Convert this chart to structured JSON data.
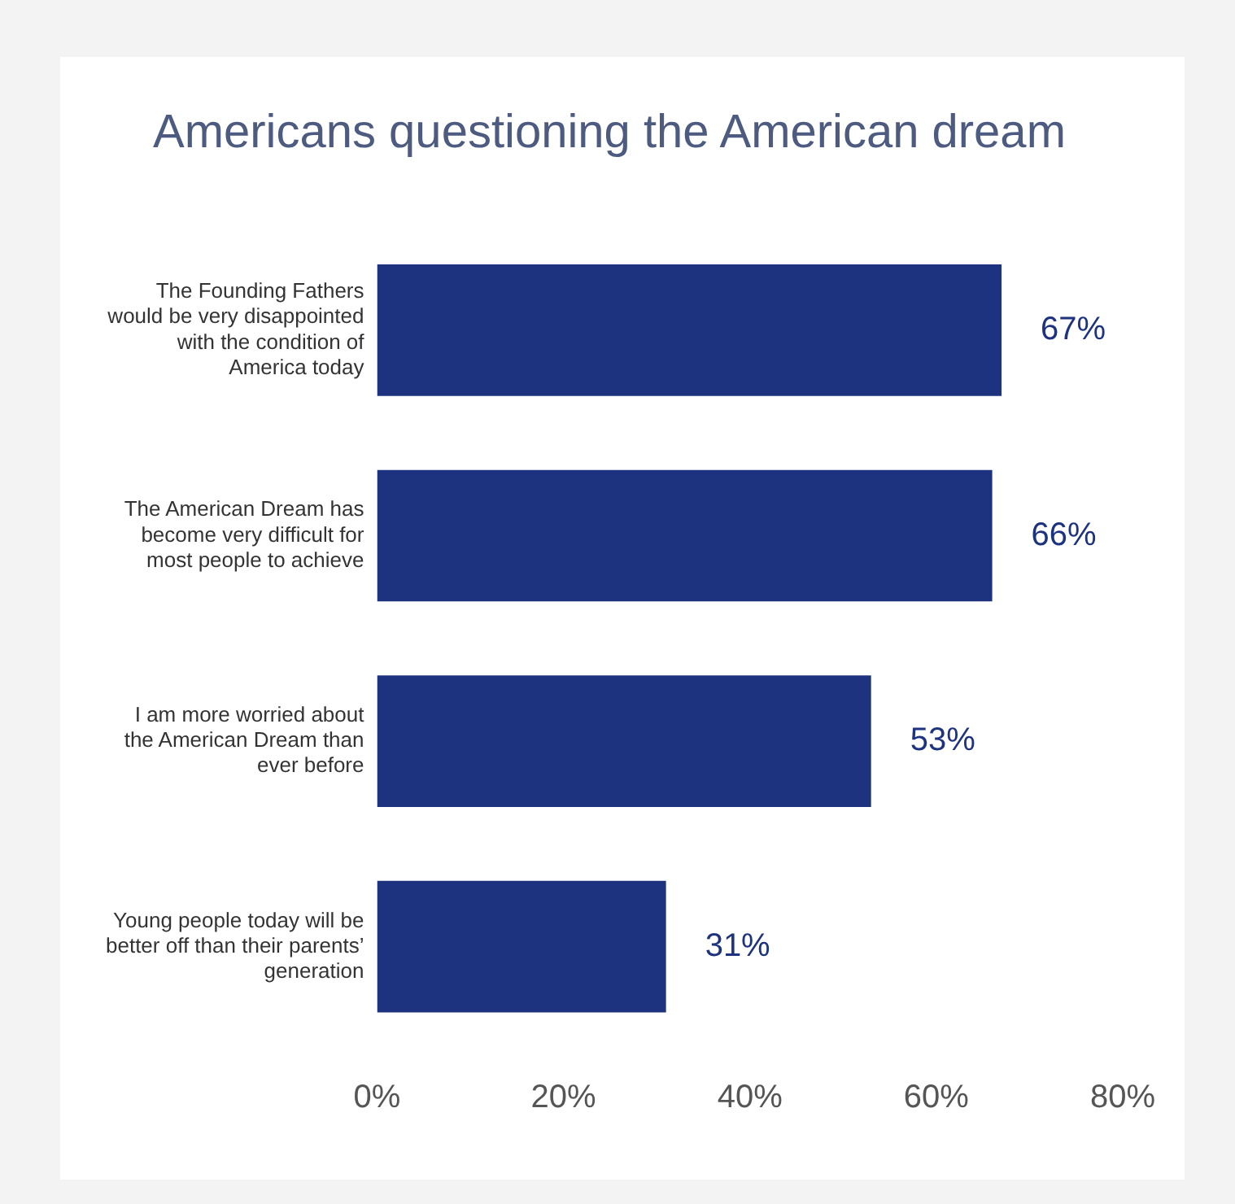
{
  "chart_data": {
    "type": "bar",
    "orientation": "horizontal",
    "title": "Americans questioning the American dream",
    "categories": [
      "The Founding Fathers would be very disappointed with the condition of America today",
      "The American Dream has become very difficult for most people to achieve",
      "I am more worried about the American Dream than ever before",
      "Young people today will be better off than their parents’ generation"
    ],
    "values": [
      67,
      66,
      53,
      31
    ],
    "color": "#1d3380",
    "value_labels": [
      "67%",
      "66%",
      "53%",
      "31%"
    ],
    "xlim": [
      0,
      80
    ],
    "xticks": [
      {
        "value": 0,
        "label": "0%"
      },
      {
        "value": 20,
        "label": "20%"
      },
      {
        "value": 40,
        "label": "40%"
      },
      {
        "value": 60,
        "label": "60%"
      },
      {
        "value": 80,
        "label": "80%"
      }
    ],
    "grid": false,
    "legend": false
  }
}
